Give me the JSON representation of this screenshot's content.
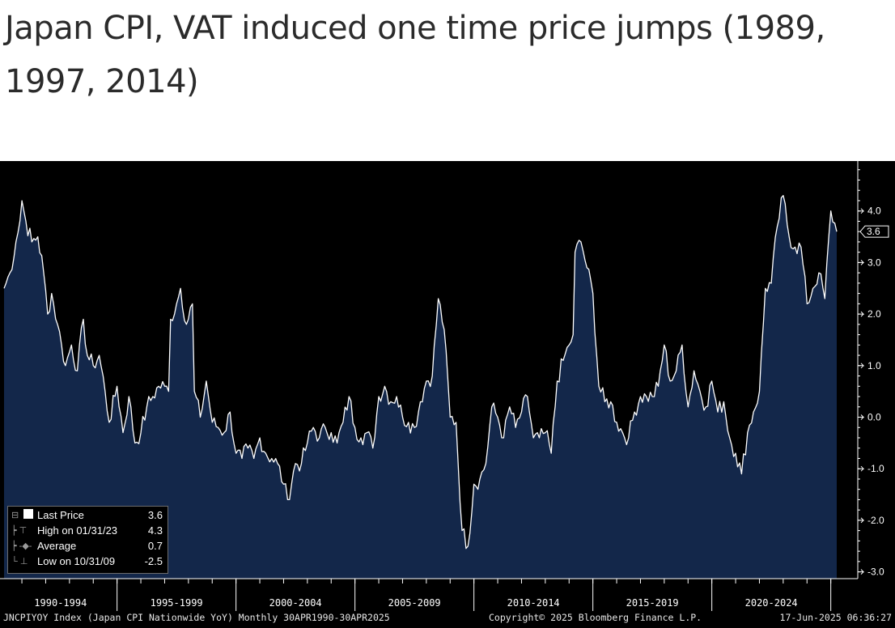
{
  "headline": "Japan CPI, VAT induced one time price jumps (1989, 1997, 2014)",
  "colors": {
    "background": "#000000",
    "area_fill": "#13274a",
    "line": "#ffffff",
    "axis": "#ffffff",
    "page": "#ffffff"
  },
  "chart_data": {
    "type": "area",
    "title": "",
    "xlabel": "",
    "ylabel": "",
    "ylim": [
      -3.2,
      5.0
    ],
    "x_range": [
      "1990-04",
      "2025-04"
    ],
    "y_ticks": [
      "4.0",
      "3.0",
      "2.0",
      "1.0",
      "0.0",
      "-1.0",
      "-2.0",
      "-3.0"
    ],
    "x_tick_labels": [
      "1990-1994",
      "1995-1999",
      "2000-2004",
      "2005-2009",
      "2010-2014",
      "2015-2019",
      "2020-2024"
    ],
    "last_value_label": "3.6",
    "grid": false,
    "legend_position": "bottom-left",
    "series": [
      {
        "name": "JNCPIYOY Index",
        "points": [
          [
            "1990-04",
            2.5
          ],
          [
            "1990-07",
            2.8
          ],
          [
            "1990-10",
            3.4
          ],
          [
            "1990-12",
            3.8
          ],
          [
            "1991-01",
            4.2
          ],
          [
            "1991-03",
            3.8
          ],
          [
            "1991-06",
            3.4
          ],
          [
            "1991-09",
            3.5
          ],
          [
            "1991-12",
            2.8
          ],
          [
            "1992-02",
            2.0
          ],
          [
            "1992-04",
            2.4
          ],
          [
            "1992-07",
            1.8
          ],
          [
            "1992-09",
            1.4
          ],
          [
            "1992-11",
            1.0
          ],
          [
            "1993-02",
            1.4
          ],
          [
            "1993-05",
            0.9
          ],
          [
            "1993-08",
            1.9
          ],
          [
            "1993-10",
            1.2
          ],
          [
            "1994-01",
            1.0
          ],
          [
            "1994-04",
            1.2
          ],
          [
            "1994-07",
            0.5
          ],
          [
            "1994-09",
            -0.1
          ],
          [
            "1995-01",
            0.6
          ],
          [
            "1995-04",
            -0.3
          ],
          [
            "1995-07",
            0.4
          ],
          [
            "1995-10",
            -0.5
          ],
          [
            "1996-01",
            -0.3
          ],
          [
            "1996-04",
            0.2
          ],
          [
            "1996-07",
            0.4
          ],
          [
            "1996-10",
            0.6
          ],
          [
            "1997-01",
            0.6
          ],
          [
            "1997-03",
            0.5
          ],
          [
            "1997-04",
            1.9
          ],
          [
            "1997-07",
            2.2
          ],
          [
            "1997-09",
            2.5
          ],
          [
            "1997-12",
            1.8
          ],
          [
            "1998-03",
            2.2
          ],
          [
            "1998-04",
            0.5
          ],
          [
            "1998-07",
            0.0
          ],
          [
            "1998-10",
            0.7
          ],
          [
            "1999-01",
            -0.1
          ],
          [
            "1999-04",
            -0.2
          ],
          [
            "1999-07",
            -0.3
          ],
          [
            "1999-10",
            0.1
          ],
          [
            "2000-01",
            -0.7
          ],
          [
            "2000-04",
            -0.8
          ],
          [
            "2000-07",
            -0.6
          ],
          [
            "2000-10",
            -0.8
          ],
          [
            "2001-01",
            -0.4
          ],
          [
            "2001-04",
            -0.7
          ],
          [
            "2001-07",
            -0.8
          ],
          [
            "2001-10",
            -0.9
          ],
          [
            "2002-01",
            -1.3
          ],
          [
            "2002-03",
            -1.6
          ],
          [
            "2002-07",
            -0.9
          ],
          [
            "2002-10",
            -0.9
          ],
          [
            "2003-01",
            -0.5
          ],
          [
            "2003-04",
            -0.2
          ],
          [
            "2003-07",
            -0.4
          ],
          [
            "2003-10",
            -0.2
          ],
          [
            "2004-01",
            -0.3
          ],
          [
            "2004-04",
            -0.5
          ],
          [
            "2004-07",
            -0.1
          ],
          [
            "2004-10",
            0.4
          ],
          [
            "2005-01",
            -0.2
          ],
          [
            "2005-04",
            -0.4
          ],
          [
            "2005-07",
            -0.3
          ],
          [
            "2005-10",
            -0.6
          ],
          [
            "2006-01",
            0.4
          ],
          [
            "2006-04",
            0.6
          ],
          [
            "2006-07",
            0.3
          ],
          [
            "2006-10",
            0.4
          ],
          [
            "2007-01",
            0.0
          ],
          [
            "2007-04",
            -0.1
          ],
          [
            "2007-07",
            -0.2
          ],
          [
            "2007-10",
            0.3
          ],
          [
            "2008-01",
            0.7
          ],
          [
            "2008-04",
            0.8
          ],
          [
            "2008-07",
            2.3
          ],
          [
            "2008-10",
            1.7
          ],
          [
            "2009-01",
            0.0
          ],
          [
            "2009-04",
            -0.1
          ],
          [
            "2009-07",
            -2.2
          ],
          [
            "2009-10",
            -2.5
          ],
          [
            "2010-01",
            -1.3
          ],
          [
            "2010-04",
            -1.2
          ],
          [
            "2010-07",
            -0.9
          ],
          [
            "2010-10",
            0.2
          ],
          [
            "2011-01",
            0.0
          ],
          [
            "2011-04",
            -0.4
          ],
          [
            "2011-07",
            0.2
          ],
          [
            "2011-10",
            -0.2
          ],
          [
            "2012-01",
            0.1
          ],
          [
            "2012-04",
            0.4
          ],
          [
            "2012-07",
            -0.4
          ],
          [
            "2012-10",
            -0.4
          ],
          [
            "2013-01",
            -0.3
          ],
          [
            "2013-04",
            -0.7
          ],
          [
            "2013-07",
            0.7
          ],
          [
            "2013-10",
            1.1
          ],
          [
            "2014-01",
            1.4
          ],
          [
            "2014-03",
            1.6
          ],
          [
            "2014-04",
            3.2
          ],
          [
            "2014-07",
            3.4
          ],
          [
            "2014-10",
            2.9
          ],
          [
            "2015-01",
            2.4
          ],
          [
            "2015-04",
            0.6
          ],
          [
            "2015-07",
            0.3
          ],
          [
            "2015-10",
            0.3
          ],
          [
            "2016-01",
            -0.1
          ],
          [
            "2016-04",
            -0.3
          ],
          [
            "2016-07",
            -0.4
          ],
          [
            "2016-10",
            0.1
          ],
          [
            "2017-01",
            0.4
          ],
          [
            "2017-04",
            0.4
          ],
          [
            "2017-07",
            0.4
          ],
          [
            "2017-10",
            0.6
          ],
          [
            "2018-01",
            1.4
          ],
          [
            "2018-04",
            0.7
          ],
          [
            "2018-07",
            0.9
          ],
          [
            "2018-10",
            1.4
          ],
          [
            "2019-01",
            0.2
          ],
          [
            "2019-04",
            0.9
          ],
          [
            "2019-07",
            0.5
          ],
          [
            "2019-10",
            0.2
          ],
          [
            "2020-01",
            0.7
          ],
          [
            "2020-04",
            0.1
          ],
          [
            "2020-07",
            0.3
          ],
          [
            "2020-10",
            -0.4
          ],
          [
            "2021-01",
            -0.7
          ],
          [
            "2021-04",
            -1.1
          ],
          [
            "2021-07",
            -0.3
          ],
          [
            "2021-10",
            0.1
          ],
          [
            "2022-01",
            0.5
          ],
          [
            "2022-04",
            2.5
          ],
          [
            "2022-07",
            2.6
          ],
          [
            "2022-10",
            3.7
          ],
          [
            "2023-01",
            4.3
          ],
          [
            "2023-04",
            3.5
          ],
          [
            "2023-07",
            3.3
          ],
          [
            "2023-10",
            3.3
          ],
          [
            "2024-01",
            2.2
          ],
          [
            "2024-04",
            2.5
          ],
          [
            "2024-07",
            2.8
          ],
          [
            "2024-10",
            2.3
          ],
          [
            "2025-01",
            4.0
          ],
          [
            "2025-04",
            3.6
          ]
        ]
      }
    ]
  },
  "legend": {
    "items": [
      {
        "symbol": "last-price-swatch",
        "label": "Last Price",
        "value": "3.6"
      },
      {
        "symbol": "high-marker-icon",
        "label": "High on 01/31/23",
        "value": "4.3"
      },
      {
        "symbol": "average-marker-icon",
        "label": "Average",
        "value": "0.7"
      },
      {
        "symbol": "low-marker-icon",
        "label": "Low on 10/31/09",
        "value": "-2.5"
      }
    ]
  },
  "footer": {
    "left": "JNCPIYOY Index (Japan CPI Nationwide YoY)  Monthly 30APR1990-30APR2025",
    "mid": "Copyright© 2025 Bloomberg Finance L.P.",
    "right": "17-Jun-2025 06:36:27"
  }
}
